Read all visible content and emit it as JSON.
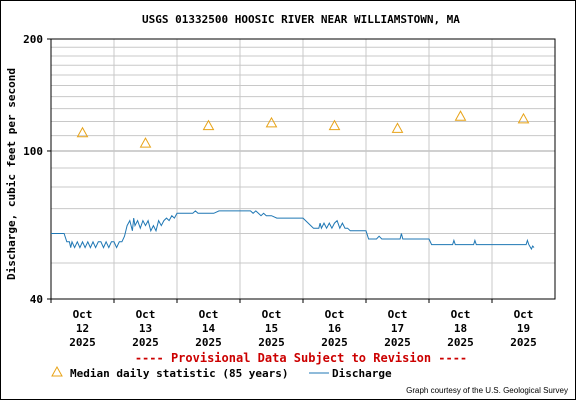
{
  "chart_data": {
    "type": "line",
    "title": "USGS 01332500 HOOSIC RIVER NEAR WILLIAMSTOWN, MA",
    "ylabel": "Discharge, cubic feet per second",
    "y_scale": "log",
    "ylim": [
      40,
      200
    ],
    "y_tick_labels": [
      "200",
      "100",
      "40"
    ],
    "y_ticks": [
      200,
      100,
      40
    ],
    "y_minor_gridlines": [
      50,
      60,
      70,
      80,
      90,
      110,
      120,
      130,
      140,
      150,
      160,
      170,
      180,
      190
    ],
    "x_range": [
      "2025-10-12T00:00",
      "2025-10-20T00:00"
    ],
    "x_ticks": [
      {
        "date": "2025-10-12",
        "month": "Oct",
        "day": "12",
        "year": "2025"
      },
      {
        "date": "2025-10-13",
        "month": "Oct",
        "day": "13",
        "year": "2025"
      },
      {
        "date": "2025-10-14",
        "month": "Oct",
        "day": "14",
        "year": "2025"
      },
      {
        "date": "2025-10-15",
        "month": "Oct",
        "day": "15",
        "year": "2025"
      },
      {
        "date": "2025-10-16",
        "month": "Oct",
        "day": "16",
        "year": "2025"
      },
      {
        "date": "2025-10-17",
        "month": "Oct",
        "day": "17",
        "year": "2025"
      },
      {
        "date": "2025-10-18",
        "month": "Oct",
        "day": "18",
        "year": "2025"
      },
      {
        "date": "2025-10-19",
        "month": "Oct",
        "day": "19",
        "year": "2025"
      }
    ],
    "grid": true,
    "series": [
      {
        "name": "Median daily statistic (85 years)",
        "marker": "triangle",
        "color": "#E8A317",
        "points": [
          {
            "x": "2025-10-12T12:00",
            "y": 112
          },
          {
            "x": "2025-10-13T12:00",
            "y": 105
          },
          {
            "x": "2025-10-14T12:00",
            "y": 117
          },
          {
            "x": "2025-10-15T12:00",
            "y": 119
          },
          {
            "x": "2025-10-16T12:00",
            "y": 117
          },
          {
            "x": "2025-10-17T12:00",
            "y": 115
          },
          {
            "x": "2025-10-18T12:00",
            "y": 124
          },
          {
            "x": "2025-10-19T12:00",
            "y": 122
          }
        ]
      },
      {
        "name": "Discharge",
        "color": "#1F77B4",
        "points": [
          {
            "x": "2025-10-12T00:00",
            "y": 60
          },
          {
            "x": "2025-10-12T05:00",
            "y": 60
          },
          {
            "x": "2025-10-12T06:00",
            "y": 57
          },
          {
            "x": "2025-10-12T07:00",
            "y": 57
          },
          {
            "x": "2025-10-12T07:30",
            "y": 55
          },
          {
            "x": "2025-10-12T08:00",
            "y": 57
          },
          {
            "x": "2025-10-12T09:00",
            "y": 55
          },
          {
            "x": "2025-10-12T10:00",
            "y": 57
          },
          {
            "x": "2025-10-12T11:00",
            "y": 55
          },
          {
            "x": "2025-10-12T12:00",
            "y": 57
          },
          {
            "x": "2025-10-12T13:00",
            "y": 55
          },
          {
            "x": "2025-10-12T14:00",
            "y": 57
          },
          {
            "x": "2025-10-12T15:00",
            "y": 55
          },
          {
            "x": "2025-10-12T16:00",
            "y": 57
          },
          {
            "x": "2025-10-12T17:00",
            "y": 55
          },
          {
            "x": "2025-10-12T18:00",
            "y": 57
          },
          {
            "x": "2025-10-12T19:00",
            "y": 57
          },
          {
            "x": "2025-10-12T20:00",
            "y": 55
          },
          {
            "x": "2025-10-12T21:00",
            "y": 57
          },
          {
            "x": "2025-10-12T22:00",
            "y": 55
          },
          {
            "x": "2025-10-12T23:00",
            "y": 57
          },
          {
            "x": "2025-10-13T00:00",
            "y": 57
          },
          {
            "x": "2025-10-13T01:00",
            "y": 55
          },
          {
            "x": "2025-10-13T02:00",
            "y": 57
          },
          {
            "x": "2025-10-13T03:00",
            "y": 57
          },
          {
            "x": "2025-10-13T04:00",
            "y": 59
          },
          {
            "x": "2025-10-13T05:00",
            "y": 63
          },
          {
            "x": "2025-10-13T06:00",
            "y": 65
          },
          {
            "x": "2025-10-13T07:00",
            "y": 61
          },
          {
            "x": "2025-10-13T07:30",
            "y": 66
          },
          {
            "x": "2025-10-13T08:00",
            "y": 63
          },
          {
            "x": "2025-10-13T09:00",
            "y": 65
          },
          {
            "x": "2025-10-13T10:00",
            "y": 62
          },
          {
            "x": "2025-10-13T11:00",
            "y": 65
          },
          {
            "x": "2025-10-13T12:00",
            "y": 63
          },
          {
            "x": "2025-10-13T13:00",
            "y": 65
          },
          {
            "x": "2025-10-13T14:00",
            "y": 61
          },
          {
            "x": "2025-10-13T15:00",
            "y": 63
          },
          {
            "x": "2025-10-13T16:00",
            "y": 61
          },
          {
            "x": "2025-10-13T17:00",
            "y": 65
          },
          {
            "x": "2025-10-13T18:00",
            "y": 63
          },
          {
            "x": "2025-10-13T19:00",
            "y": 65
          },
          {
            "x": "2025-10-13T20:00",
            "y": 66
          },
          {
            "x": "2025-10-13T21:00",
            "y": 65
          },
          {
            "x": "2025-10-13T22:00",
            "y": 67
          },
          {
            "x": "2025-10-13T23:00",
            "y": 66
          },
          {
            "x": "2025-10-14T00:00",
            "y": 68
          },
          {
            "x": "2025-10-14T06:00",
            "y": 68
          },
          {
            "x": "2025-10-14T07:00",
            "y": 69
          },
          {
            "x": "2025-10-14T08:00",
            "y": 68
          },
          {
            "x": "2025-10-14T12:00",
            "y": 68
          },
          {
            "x": "2025-10-14T14:00",
            "y": 68
          },
          {
            "x": "2025-10-14T16:00",
            "y": 69
          },
          {
            "x": "2025-10-14T20:00",
            "y": 69
          },
          {
            "x": "2025-10-15T00:00",
            "y": 69
          },
          {
            "x": "2025-10-15T04:00",
            "y": 69
          },
          {
            "x": "2025-10-15T05:00",
            "y": 68
          },
          {
            "x": "2025-10-15T06:00",
            "y": 69
          },
          {
            "x": "2025-10-15T07:00",
            "y": 68
          },
          {
            "x": "2025-10-15T08:00",
            "y": 67
          },
          {
            "x": "2025-10-15T09:00",
            "y": 68
          },
          {
            "x": "2025-10-15T10:00",
            "y": 67
          },
          {
            "x": "2025-10-15T12:00",
            "y": 67
          },
          {
            "x": "2025-10-15T14:00",
            "y": 66
          },
          {
            "x": "2025-10-15T16:00",
            "y": 66
          },
          {
            "x": "2025-10-15T20:00",
            "y": 66
          },
          {
            "x": "2025-10-16T00:00",
            "y": 66
          },
          {
            "x": "2025-10-16T04:00",
            "y": 62
          },
          {
            "x": "2025-10-16T06:00",
            "y": 62
          },
          {
            "x": "2025-10-16T06:30",
            "y": 64
          },
          {
            "x": "2025-10-16T07:00",
            "y": 62
          },
          {
            "x": "2025-10-16T08:00",
            "y": 64
          },
          {
            "x": "2025-10-16T09:00",
            "y": 62
          },
          {
            "x": "2025-10-16T10:00",
            "y": 64
          },
          {
            "x": "2025-10-16T11:00",
            "y": 62
          },
          {
            "x": "2025-10-16T12:00",
            "y": 64
          },
          {
            "x": "2025-10-16T13:00",
            "y": 65
          },
          {
            "x": "2025-10-16T14:00",
            "y": 62
          },
          {
            "x": "2025-10-16T15:00",
            "y": 64
          },
          {
            "x": "2025-10-16T16:00",
            "y": 62
          },
          {
            "x": "2025-10-16T17:00",
            "y": 62
          },
          {
            "x": "2025-10-16T18:00",
            "y": 61
          },
          {
            "x": "2025-10-16T22:00",
            "y": 61
          },
          {
            "x": "2025-10-17T00:00",
            "y": 61
          },
          {
            "x": "2025-10-17T01:00",
            "y": 58
          },
          {
            "x": "2025-10-17T04:00",
            "y": 58
          },
          {
            "x": "2025-10-17T05:00",
            "y": 59
          },
          {
            "x": "2025-10-17T06:00",
            "y": 58
          },
          {
            "x": "2025-10-17T12:00",
            "y": 58
          },
          {
            "x": "2025-10-17T13:00",
            "y": 58
          },
          {
            "x": "2025-10-17T13:30",
            "y": 60
          },
          {
            "x": "2025-10-17T14:00",
            "y": 58
          },
          {
            "x": "2025-10-17T20:00",
            "y": 58
          },
          {
            "x": "2025-10-18T00:00",
            "y": 58
          },
          {
            "x": "2025-10-18T01:00",
            "y": 56
          },
          {
            "x": "2025-10-18T08:00",
            "y": 56
          },
          {
            "x": "2025-10-18T09:00",
            "y": 56
          },
          {
            "x": "2025-10-18T09:30",
            "y": 57.5
          },
          {
            "x": "2025-10-18T10:00",
            "y": 56
          },
          {
            "x": "2025-10-18T16:00",
            "y": 56
          },
          {
            "x": "2025-10-18T17:00",
            "y": 56
          },
          {
            "x": "2025-10-18T17:30",
            "y": 57.5
          },
          {
            "x": "2025-10-18T18:00",
            "y": 56
          },
          {
            "x": "2025-10-19T00:00",
            "y": 56
          },
          {
            "x": "2025-10-19T12:00",
            "y": 56
          },
          {
            "x": "2025-10-19T13:00",
            "y": 56
          },
          {
            "x": "2025-10-19T13:30",
            "y": 57.5
          },
          {
            "x": "2025-10-19T14:00",
            "y": 56
          },
          {
            "x": "2025-10-19T15:00",
            "y": 54.5
          },
          {
            "x": "2025-10-19T15:30",
            "y": 55.5
          },
          {
            "x": "2025-10-19T16:00",
            "y": 55
          }
        ]
      }
    ]
  },
  "provisional_note": "---- Provisional Data Subject to Revision ----",
  "credit": "Graph courtesy of the U.S. Geological Survey",
  "colors": {
    "median": "#E8A317",
    "discharge": "#1F77B4",
    "provisional": "#CC0000",
    "grid": "#C8C8C8"
  }
}
